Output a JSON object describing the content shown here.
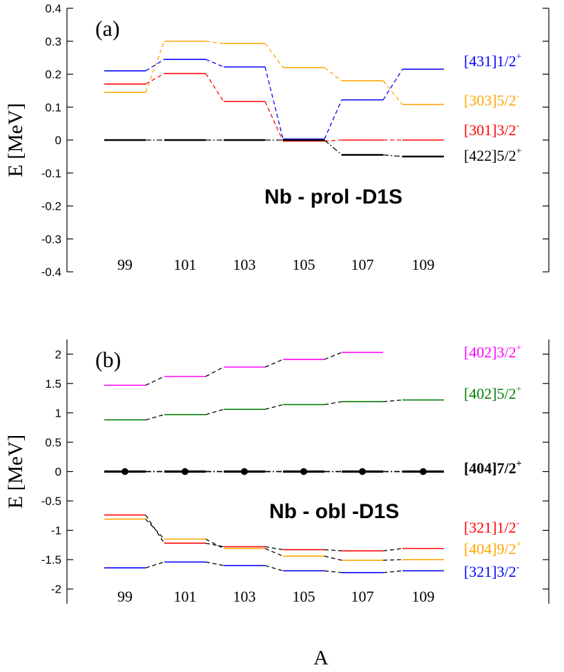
{
  "chart_data": [
    {
      "type": "line",
      "panel_label": "(a)",
      "annotation": "Nb - prol -D1S",
      "xlabel": "",
      "ylabel": "E [MeV]",
      "ylim": [
        -0.4,
        0.4
      ],
      "yticks": [
        -0.4,
        -0.3,
        -0.2,
        -0.1,
        0,
        0.1,
        0.2,
        0.3,
        0.4
      ],
      "ytick_labels": [
        "-0.4",
        "-0.3",
        "-0.2",
        "-0.1",
        "0",
        "0.1",
        "0.2",
        "0.3",
        "0.4"
      ],
      "categories": [
        "99",
        "101",
        "103",
        "105",
        "107",
        "109"
      ],
      "series": [
        {
          "label": "[431]1/2",
          "sup": "+",
          "color": "#0000ff",
          "bold": false,
          "values": [
            0.21,
            0.245,
            0.222,
            0.003,
            0.122,
            0.215
          ]
        },
        {
          "label": "[303]5/2",
          "sup": "-",
          "color": "#ffa500",
          "bold": false,
          "values": [
            0.145,
            0.3,
            0.293,
            0.22,
            0.18,
            0.108
          ]
        },
        {
          "label": "[301]3/2",
          "sup": "-",
          "color": "#ff0000",
          "bold": false,
          "values": [
            0.17,
            0.202,
            0.117,
            -0.003,
            0.0,
            0.0
          ]
        },
        {
          "label": "[422]5/2",
          "sup": "+",
          "color": "#000000",
          "bold": false,
          "values": [
            0.0,
            0.0,
            0.0,
            0.0,
            -0.045,
            -0.05
          ]
        }
      ]
    },
    {
      "type": "line",
      "panel_label": "(b)",
      "annotation": "Nb - obl -D1S",
      "xlabel": "A",
      "ylabel": "E [MeV]",
      "ylim": [
        -2.25,
        2.25
      ],
      "yticks": [
        -2,
        -1.5,
        -1,
        -0.5,
        0,
        0.5,
        1,
        1.5,
        2
      ],
      "ytick_labels": [
        "-2",
        "-1.5",
        "-1",
        "-0.5",
        "0",
        "0.5",
        "1",
        "1.5",
        "2"
      ],
      "categories": [
        "99",
        "101",
        "103",
        "105",
        "107",
        "109"
      ],
      "series": [
        {
          "label": "[402]3/2",
          "sup": "+",
          "color": "#ff00ff",
          "bold": false,
          "values": [
            1.47,
            1.62,
            1.78,
            1.91,
            2.03,
            null
          ]
        },
        {
          "label": "[402]5/2",
          "sup": "+",
          "color": "#008000",
          "bold": false,
          "values": [
            0.88,
            0.97,
            1.06,
            1.14,
            1.19,
            1.22
          ]
        },
        {
          "label": "[404]7/2",
          "sup": "+",
          "color": "#000000",
          "bold": true,
          "values": [
            0.0,
            0.0,
            0.0,
            0.0,
            0.0,
            0.0
          ]
        },
        {
          "label": "[321]1/2",
          "sup": "-",
          "color": "#ff0000",
          "bold": false,
          "values": [
            -0.74,
            -1.22,
            -1.28,
            -1.33,
            -1.35,
            -1.31
          ]
        },
        {
          "label": "[404]9/2",
          "sup": "+",
          "color": "#ffa500",
          "bold": false,
          "values": [
            -0.81,
            -1.15,
            -1.31,
            -1.44,
            -1.51,
            -1.5
          ]
        },
        {
          "label": "[321]3/2",
          "sup": "-",
          "color": "#0000ff",
          "bold": false,
          "values": [
            -1.64,
            -1.54,
            -1.6,
            -1.69,
            -1.72,
            -1.69
          ]
        }
      ]
    }
  ]
}
